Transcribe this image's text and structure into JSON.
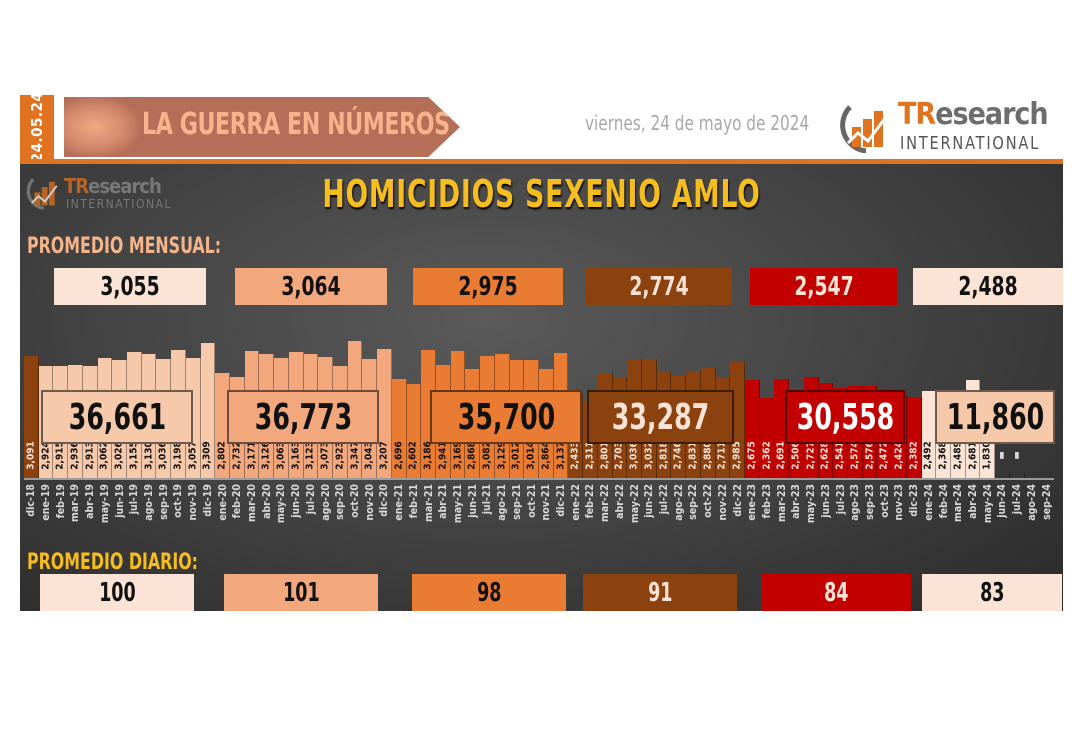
{
  "header": {
    "date_tab": "24.05.24",
    "banner_title": "LA GUERRA EN NÚMEROS",
    "date_text": "viernes, 24 de mayo de 2024",
    "logo": {
      "brand_bold": "TR",
      "brand_rest": "esearch",
      "subtitle": "INTERNATIONAL"
    }
  },
  "watermark": {
    "brand_bold": "TR",
    "brand_rest": "esearch",
    "subtitle": "INTERNATIONAL"
  },
  "title": "HOMICIDIOS SEXENIO AMLO",
  "labels": {
    "monthly_average": "PROMEDIO MENSUAL:",
    "daily_average": "PROMEDIO DIARIO:"
  },
  "colors": {
    "y2019": "#f6c9ab",
    "y2020": "#f2a77d",
    "y2021": "#ea7b33",
    "y2022": "#8b420f",
    "y2023": "#c30000",
    "y2024": "#fbe3d6",
    "accent": "#e0731f",
    "title": "#f6bd1f"
  },
  "periods": [
    {
      "key": "2019",
      "monthly_avg": "3,055",
      "daily_avg": "100",
      "total": "36,661",
      "box_bg": "#fbe3d6",
      "text": "#111111",
      "sum_bg": "#f6c9ab",
      "sum_text": "#111111"
    },
    {
      "key": "2020",
      "monthly_avg": "3,064",
      "daily_avg": "101",
      "total": "36,773",
      "box_bg": "#f2a77d",
      "text": "#111111",
      "sum_bg": "#f2a77d",
      "sum_text": "#111111"
    },
    {
      "key": "2021",
      "monthly_avg": "2,975",
      "daily_avg": "98",
      "total": "35,700",
      "box_bg": "#ea7b33",
      "text": "#111111",
      "sum_bg": "#ea7b33",
      "sum_text": "#111111"
    },
    {
      "key": "2022",
      "monthly_avg": "2,774",
      "daily_avg": "91",
      "total": "33,287",
      "box_bg": "#8b420f",
      "text": "#fbe3d6",
      "sum_bg": "#8b420f",
      "sum_text": "#fbe3d6"
    },
    {
      "key": "2023",
      "monthly_avg": "2,547",
      "daily_avg": "84",
      "total": "30,558",
      "box_bg": "#c30000",
      "text": "#fbe3d6",
      "sum_bg": "#c30000",
      "sum_text": "#ffffff"
    },
    {
      "key": "2024",
      "monthly_avg": "2,488",
      "daily_avg": "83",
      "total": "11,860",
      "box_bg": "#fbe3d6",
      "text": "#111111",
      "sum_bg": "#f6c9ab",
      "sum_text": "#111111"
    }
  ],
  "chart_data": {
    "type": "bar",
    "title": "HOMICIDIOS SEXENIO AMLO",
    "xlabel": "",
    "ylabel": "",
    "grid": false,
    "categories": [
      "dic-18",
      "ene-19",
      "feb-19",
      "mar-19",
      "abr-19",
      "may-19",
      "jun-19",
      "jul-19",
      "ago-19",
      "sep-19",
      "oct-19",
      "nov-19",
      "dic-19",
      "ene-20",
      "feb-20",
      "mar-20",
      "abr-20",
      "may-20",
      "jun-20",
      "jul-20",
      "ago-20",
      "sep-20",
      "oct-20",
      "nov-20",
      "dic-20",
      "ene-21",
      "feb-21",
      "mar-21",
      "abr-21",
      "may-21",
      "jun-21",
      "jul-21",
      "ago-21",
      "sep-21",
      "oct-21",
      "nov-21",
      "dic-21",
      "ene-22",
      "feb-22",
      "mar-22",
      "abr-22",
      "may-22",
      "jun-22",
      "jul-22",
      "ago-22",
      "sep-22",
      "oct-22",
      "nov-22",
      "dic-22",
      "ene-23",
      "feb-23",
      "mar-23",
      "abr-23",
      "may-23",
      "jun-23",
      "jul-23",
      "ago-23",
      "sep-23",
      "oct-23",
      "nov-23",
      "dic-23",
      "ene-24",
      "feb-24",
      "mar-24",
      "abr-24",
      "may-24",
      "jun-24",
      "jul-24",
      "ago-24",
      "sep-24"
    ],
    "values": [
      3091,
      2924,
      2915,
      2936,
      2913,
      3062,
      3026,
      3155,
      3130,
      3036,
      3198,
      3057,
      3309,
      2802,
      2732,
      3171,
      3126,
      3063,
      3163,
      3123,
      3073,
      2923,
      3347,
      3043,
      3207,
      2696,
      2602,
      3186,
      2941,
      3169,
      2868,
      3082,
      3129,
      3012,
      3014,
      2864,
      3137,
      2433,
      2311,
      2801,
      2703,
      3036,
      3032,
      2818,
      2746,
      2831,
      2880,
      2711,
      2985,
      2675,
      2362,
      2691,
      2506,
      2727,
      2628,
      2541,
      2574,
      2576,
      2472,
      2424,
      2382,
      2492,
      2368,
      2489,
      2681,
      1830,
      0,
      0,
      null,
      null
    ],
    "value_labels": [
      "3,091",
      "2,924",
      "2,915",
      "2,936",
      "2,913",
      "3,062",
      "3,026",
      "3,155",
      "3,130",
      "3,036",
      "3,198",
      "3,057",
      "3,309",
      "2,802",
      "2,732",
      "3,171",
      "3,126",
      "3,063",
      "3,163",
      "3,123",
      "3,073",
      "2,923",
      "3,347",
      "3,043",
      "3,207",
      "2,696",
      "2,602",
      "3,186",
      "2,941",
      "3,169",
      "2,868",
      "3,082",
      "3,129",
      "3,012",
      "3,014",
      "2,864",
      "3,137",
      "2,433",
      "2,311",
      "2,801",
      "2,703",
      "3,036",
      "3,032",
      "2,818",
      "2,746",
      "2,831",
      "2,880",
      "2,711",
      "2,985",
      "2,675",
      "2,362",
      "2,691",
      "2,506",
      "2,727",
      "2,628",
      "2,541",
      "2,574",
      "2,576",
      "2,472",
      "2,424",
      "2,382",
      "2,492",
      "2,368",
      "2,489",
      "2,681",
      "1,830",
      "0",
      "0",
      "",
      ""
    ],
    "year_totals": [
      {
        "label": "2019",
        "value": 36661
      },
      {
        "label": "2020",
        "value": 36773
      },
      {
        "label": "2021",
        "value": 35700
      },
      {
        "label": "2022",
        "value": 33287
      },
      {
        "label": "2023",
        "value": 30558
      },
      {
        "label": "2024",
        "value": 11860
      }
    ],
    "monthly_average": [
      3055,
      3064,
      2975,
      2774,
      2547,
      2488
    ],
    "daily_average": [
      100,
      101,
      98,
      91,
      84,
      83
    ]
  }
}
